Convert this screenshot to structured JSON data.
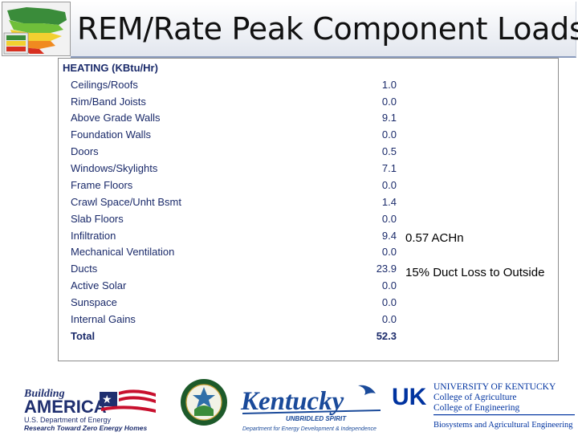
{
  "title": "REM/Rate Peak Component Loads",
  "heating": {
    "heading": "HEATING (KBtu/Hr)",
    "rows": [
      {
        "label": "Ceilings/Roofs",
        "value": "1.0"
      },
      {
        "label": "Rim/Band Joists",
        "value": "0.0"
      },
      {
        "label": "Above Grade Walls",
        "value": "9.1"
      },
      {
        "label": "Foundation Walls",
        "value": "0.0"
      },
      {
        "label": "Doors",
        "value": "0.5"
      },
      {
        "label": "Windows/Skylights",
        "value": "7.1"
      },
      {
        "label": "Frame Floors",
        "value": "0.0"
      },
      {
        "label": "Crawl Space/Unht Bsmt",
        "value": "1.4"
      },
      {
        "label": "Slab Floors",
        "value": "0.0"
      },
      {
        "label": "Infiltration",
        "value": "9.4"
      },
      {
        "label": "Mechanical Ventilation",
        "value": "0.0"
      },
      {
        "label": "Ducts",
        "value": "23.9"
      },
      {
        "label": "Active Solar",
        "value": "0.0"
      },
      {
        "label": "Sunspace",
        "value": "0.0"
      },
      {
        "label": "Internal Gains",
        "value": "0.0"
      }
    ],
    "total": {
      "label": "Total",
      "value": "52.3"
    }
  },
  "annotations": {
    "infiltration": "0.57 ACHn",
    "ducts": "15% Duct Loss to Outside"
  },
  "logos": {
    "building_america": {
      "word1": "Building",
      "word2": "AMERICA",
      "line1": "U.S. Department of Energy",
      "line2": "Research Toward Zero Energy Homes"
    },
    "kentucky": {
      "name": "Kentucky",
      "tagline": "UNBRIDLED SPIRIT",
      "dept": "Department for Energy Development & Independence"
    },
    "uk": {
      "mark": "UK",
      "line1": "UNIVERSITY OF KENTUCKY",
      "line2": "College of Agriculture",
      "line3": "College of Engineering",
      "line4": "Biosystems and Agricultural Engineering"
    }
  },
  "colors": {
    "table_text": "#1a2a6a",
    "title_border": "#8a9bbd",
    "uk_blue": "#0033a0",
    "flag_red": "#c8102e"
  }
}
